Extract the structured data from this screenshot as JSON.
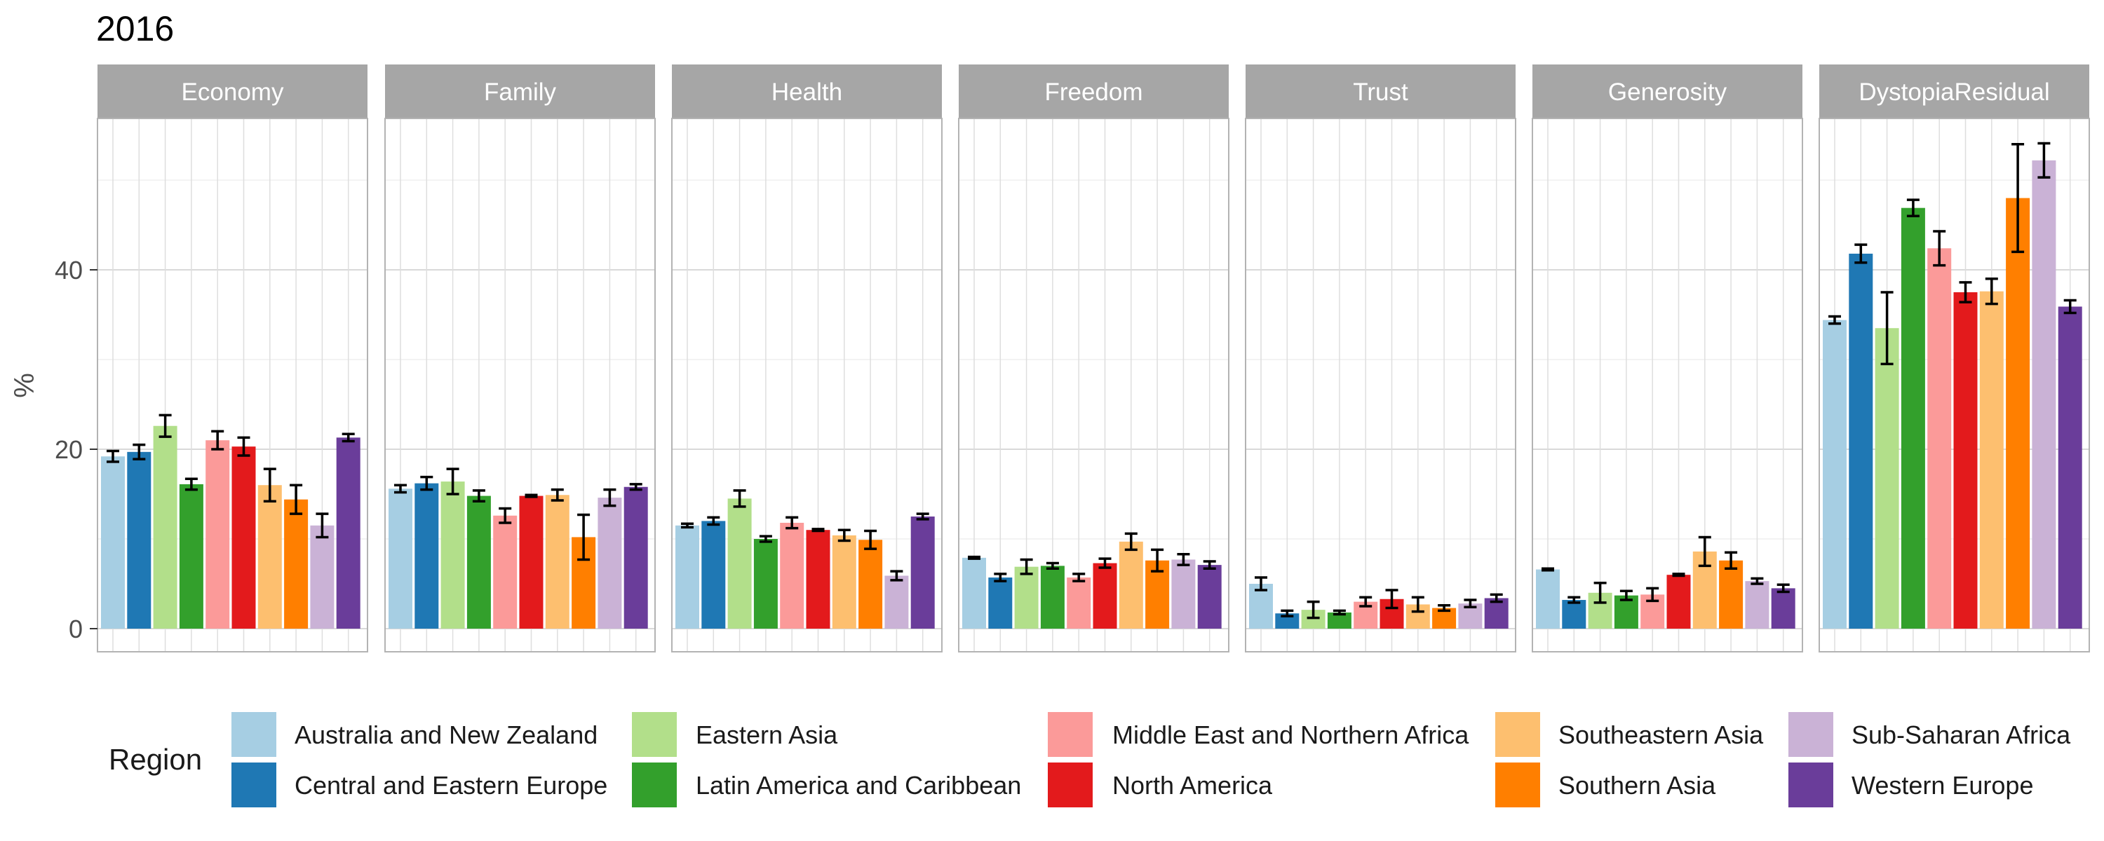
{
  "chart_data": {
    "type": "bar",
    "title": "2016",
    "ylabel": "%",
    "ylim": [
      0,
      58
    ],
    "yticks": [
      0,
      20,
      40
    ],
    "grid": true,
    "legend_position": "bottom",
    "legend_title": "Region",
    "regions": [
      "Australia and New Zealand",
      "Central and Eastern Europe",
      "Eastern Asia",
      "Latin America and Caribbean",
      "Middle East and Northern Africa",
      "North America",
      "Southeastern Asia",
      "Southern Asia",
      "Sub-Saharan Africa",
      "Western Europe"
    ],
    "colors": [
      "#a6cee3",
      "#1f78b4",
      "#b2df8a",
      "#33a02c",
      "#fb9a99",
      "#e31a1c",
      "#fdbf6f",
      "#ff7f00",
      "#cab2d6",
      "#6a3d9a"
    ],
    "panels": [
      {
        "name": "Economy",
        "values": [
          19.2,
          19.7,
          22.6,
          16.1,
          21.0,
          20.3,
          16.0,
          14.4,
          11.5,
          21.3
        ],
        "errors": [
          0.6,
          0.8,
          1.2,
          0.6,
          1.0,
          1.0,
          1.8,
          1.6,
          1.3,
          0.4
        ]
      },
      {
        "name": "Family",
        "values": [
          15.6,
          16.2,
          16.4,
          14.8,
          12.6,
          14.8,
          14.9,
          10.2,
          14.6,
          15.8
        ],
        "errors": [
          0.4,
          0.7,
          1.4,
          0.6,
          0.8,
          0.1,
          0.6,
          2.5,
          0.9,
          0.3
        ]
      },
      {
        "name": "Health",
        "values": [
          11.5,
          12.0,
          14.5,
          10.0,
          11.8,
          11.0,
          10.4,
          9.9,
          5.9,
          12.5
        ],
        "errors": [
          0.2,
          0.4,
          0.9,
          0.3,
          0.6,
          0.1,
          0.6,
          1.0,
          0.5,
          0.3
        ]
      },
      {
        "name": "Freedom",
        "values": [
          7.9,
          5.7,
          6.9,
          7.0,
          5.7,
          7.3,
          9.7,
          7.6,
          7.7,
          7.1
        ],
        "errors": [
          0.1,
          0.4,
          0.8,
          0.3,
          0.4,
          0.5,
          0.9,
          1.2,
          0.6,
          0.4
        ]
      },
      {
        "name": "Trust",
        "values": [
          5.0,
          1.7,
          2.1,
          1.8,
          3.0,
          3.3,
          2.7,
          2.3,
          2.8,
          3.4
        ],
        "errors": [
          0.7,
          0.3,
          0.9,
          0.2,
          0.5,
          1.0,
          0.8,
          0.3,
          0.4,
          0.4
        ]
      },
      {
        "name": "Generosity",
        "values": [
          6.6,
          3.2,
          4.0,
          3.7,
          3.8,
          6.0,
          8.6,
          7.6,
          5.3,
          4.5
        ],
        "errors": [
          0.1,
          0.3,
          1.1,
          0.5,
          0.7,
          0.1,
          1.6,
          0.9,
          0.3,
          0.4
        ]
      },
      {
        "name": "DystopiaResidual",
        "values": [
          34.4,
          41.8,
          33.5,
          46.9,
          42.4,
          37.5,
          37.6,
          48.0,
          52.2,
          35.9
        ],
        "errors": [
          0.4,
          1.0,
          4.0,
          0.9,
          1.9,
          1.1,
          1.4,
          6.0,
          1.9,
          0.7
        ]
      }
    ]
  }
}
